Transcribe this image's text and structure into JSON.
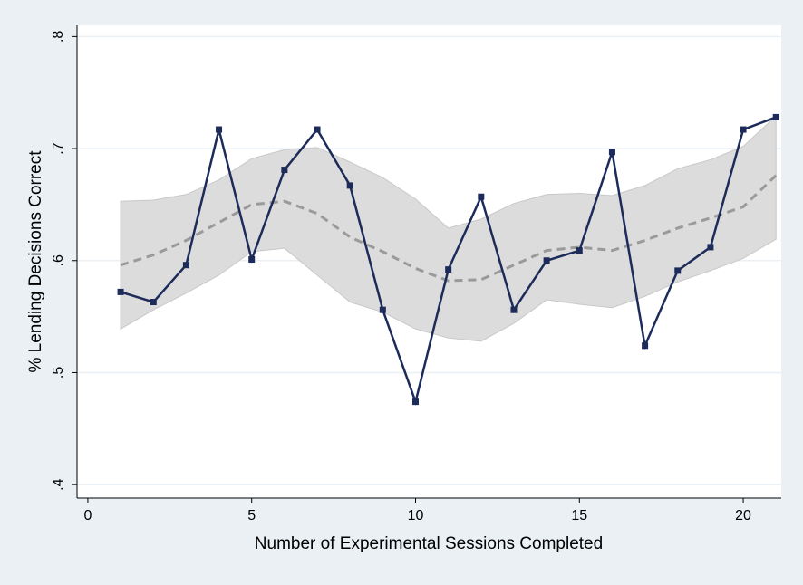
{
  "chart_data": {
    "type": "line",
    "x_label": "Number of Experimental Sessions Completed",
    "y_label": "% Lending Decisions Correct",
    "x": [
      1,
      2,
      3,
      4,
      5,
      6,
      7,
      8,
      9,
      10,
      11,
      12,
      13,
      14,
      15,
      16,
      17,
      18,
      19,
      20,
      21
    ],
    "values": [
      0.572,
      0.563,
      0.596,
      0.717,
      0.601,
      0.681,
      0.717,
      0.667,
      0.556,
      0.474,
      0.592,
      0.657,
      0.556,
      0.6,
      0.609,
      0.697,
      0.524,
      0.591,
      0.612,
      0.717,
      0.728
    ],
    "color": "#1c2b59",
    "fit": {
      "color": "#9a9a9a",
      "values": [
        0.596,
        0.605,
        0.618,
        0.634,
        0.65,
        0.653,
        0.642,
        0.621,
        0.608,
        0.593,
        0.582,
        0.583,
        0.596,
        0.609,
        0.612,
        0.609,
        0.618,
        0.629,
        0.638,
        0.648,
        0.676
      ]
    },
    "ci": {
      "color": "#dcdcdc",
      "upper": [
        0.653,
        0.654,
        0.659,
        0.672,
        0.691,
        0.699,
        0.701,
        0.688,
        0.674,
        0.655,
        0.629,
        0.637,
        0.651,
        0.659,
        0.66,
        0.658,
        0.667,
        0.682,
        0.69,
        0.702,
        0.729
      ],
      "lower": [
        0.539,
        0.556,
        0.571,
        0.587,
        0.608,
        0.611,
        0.587,
        0.563,
        0.554,
        0.539,
        0.531,
        0.528,
        0.544,
        0.565,
        0.561,
        0.558,
        0.568,
        0.581,
        0.591,
        0.602,
        0.619
      ]
    },
    "xlim": [
      -0.33,
      21.16
    ],
    "ylim": [
      0.388,
      0.81
    ],
    "xticks": [
      0,
      5,
      10,
      15,
      20
    ],
    "yticks": [
      {
        "value": 0.4,
        "label": ".4"
      },
      {
        "value": 0.5,
        "label": ".5"
      },
      {
        "value": 0.6,
        "label": ".6"
      },
      {
        "value": 0.7,
        "label": ".7"
      },
      {
        "value": 0.8,
        "label": ".8"
      }
    ],
    "grid": true
  }
}
